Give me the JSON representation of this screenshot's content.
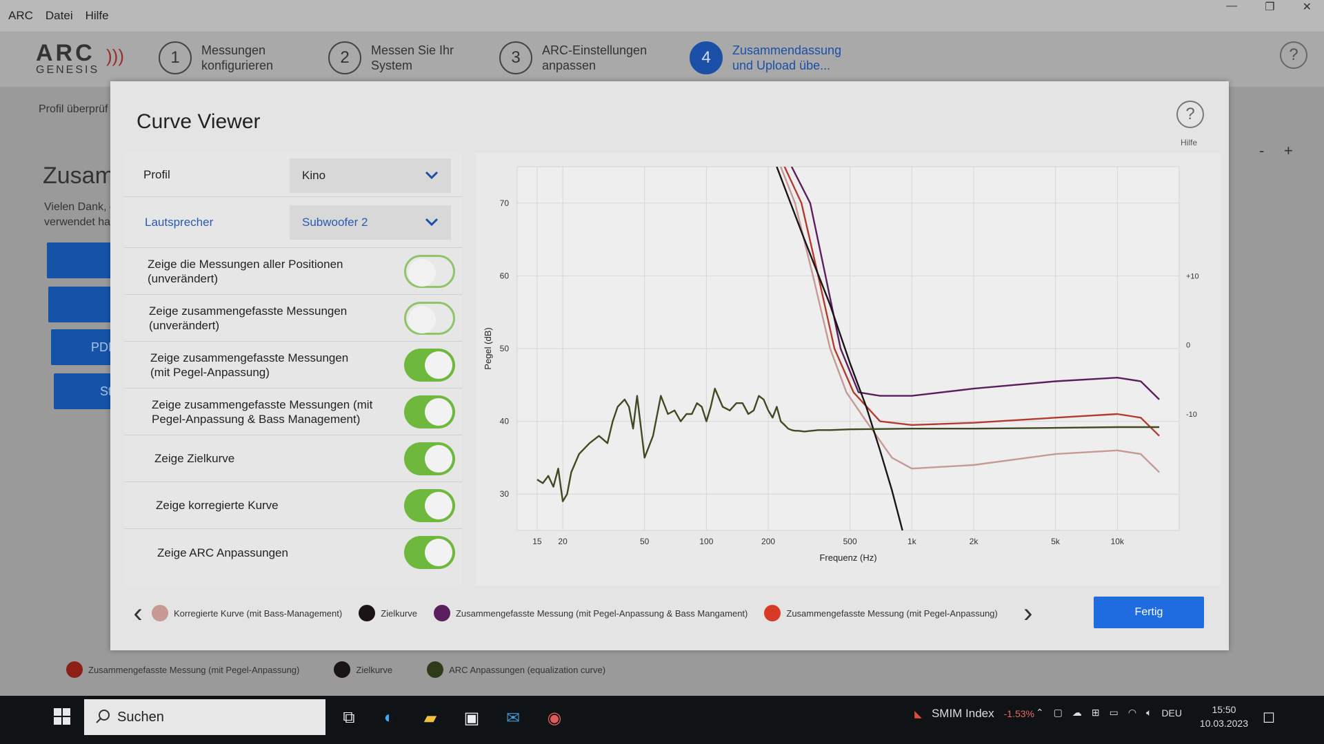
{
  "menubar": {
    "items": [
      "ARC",
      "Datei",
      "Hilfe"
    ]
  },
  "logo": {
    "arc": "ARC",
    "genesis": "GENESIS"
  },
  "steps": [
    {
      "num": "1",
      "label": "Messungen konfigurieren"
    },
    {
      "num": "2",
      "label": "Messen Sie Ihr System"
    },
    {
      "num": "3",
      "label": "ARC-Einstellungen anpassen"
    },
    {
      "num": "4",
      "label": "Zusammendassung und Upload übe..."
    }
  ],
  "background": {
    "profile_check": "Profil überprüf",
    "heading": "Zusam",
    "thanks_1": "Vielen Dank, c",
    "thanks_2": "verwendet ha",
    "pdf_button": "PDF",
    "start_button": "Sta",
    "zoom_minus": "-",
    "zoom_plus": "+"
  },
  "modal": {
    "title": "Curve Viewer",
    "help_label": "Hilfe",
    "profile_label": "Profil",
    "profile_value": "Kino",
    "speaker_label": "Lautsprecher",
    "speaker_value": "Subwoofer 2",
    "toggles": [
      {
        "label": "Zeige die Messungen aller Positionen (unverändert)",
        "on": false
      },
      {
        "label": "Zeige zusammengefasste Messungen (unverändert)",
        "on": false
      },
      {
        "label": "Zeige zusammengefasste Messungen (mit Pegel-Anpassung)",
        "on": true
      },
      {
        "label": "Zeige zusammengefasste Messungen (mit Pegel-Anpassung & Bass Management)",
        "on": true
      },
      {
        "label": "Zeige Zielkurve",
        "on": true
      },
      {
        "label": "Zeige korregierte Kurve",
        "on": true
      },
      {
        "label": "Zeige ARC Anpassungen",
        "on": true
      }
    ],
    "legend": [
      {
        "label": "Korregierte Kurve (mit Bass-Management)",
        "color": "#c49a92"
      },
      {
        "label": "Zielkurve",
        "color": "#1a1416"
      },
      {
        "label": "Zusammengefasste Messung (mit Pegel-Anpassung & Bass Mangament)",
        "color": "#5a1f5c"
      },
      {
        "label": "Zusammengefasste Messung (mit Pegel-Anpassung)",
        "color": "#d83a25"
      }
    ],
    "done_button": "Fertig"
  },
  "chart_data": {
    "type": "line",
    "xlabel": "Frequenz (Hz)",
    "ylabel": "Pegel (dB)",
    "x_scale": "log",
    "xlim": [
      12,
      20000
    ],
    "ylim": [
      25,
      75
    ],
    "x_ticks": [
      {
        "value": 15,
        "label": "15"
      },
      {
        "value": 20,
        "label": "20"
      },
      {
        "value": 50,
        "label": "50"
      },
      {
        "value": 100,
        "label": "100"
      },
      {
        "value": 200,
        "label": "200"
      },
      {
        "value": 500,
        "label": "500"
      },
      {
        "value": 1000,
        "label": "1k"
      },
      {
        "value": 2000,
        "label": "2k"
      },
      {
        "value": 5000,
        "label": "5k"
      },
      {
        "value": 10000,
        "label": "10k"
      }
    ],
    "y_ticks": [
      30,
      40,
      50,
      60,
      70
    ],
    "y2_ticks": [
      {
        "value": 60,
        "label": "+10"
      },
      {
        "value": 50.5,
        "label": "0"
      },
      {
        "value": 41,
        "label": "-10"
      }
    ],
    "grid": true,
    "series": [
      {
        "color": "#5a1f5c",
        "x": [
          260,
          320,
          380,
          450,
          550,
          700,
          1000,
          2000,
          5000,
          10000,
          13000,
          16000
        ],
        "y": [
          75,
          70,
          60,
          50,
          44,
          43.5,
          43.5,
          44.5,
          45.5,
          46,
          45.5,
          43
        ]
      },
      {
        "color": "#b33b2e",
        "x": [
          240,
          290,
          350,
          420,
          520,
          700,
          1000,
          2000,
          5000,
          10000,
          13000,
          16000
        ],
        "y": [
          75,
          70,
          60,
          50,
          44,
          40,
          39.5,
          39.8,
          40.5,
          41,
          40.5,
          38
        ]
      },
      {
        "color": "#c49a92",
        "x": [
          230,
          270,
          330,
          400,
          480,
          600,
          800,
          1000,
          2000,
          5000,
          10000,
          13000,
          16000
        ],
        "y": [
          75,
          70,
          60,
          50,
          44,
          40,
          35,
          33.5,
          34,
          35.5,
          36,
          35.5,
          33
        ]
      },
      {
        "color": "#1a1416",
        "x": [
          220,
          300,
          400,
          500,
          600,
          700,
          800,
          900
        ],
        "y": [
          75,
          65,
          56,
          48,
          42,
          36,
          30.5,
          25
        ]
      },
      {
        "color": "#3f4a23",
        "x": [
          15,
          16,
          17,
          18,
          19,
          20,
          21,
          22,
          24,
          27,
          30,
          33,
          35,
          37,
          40,
          42,
          44,
          46,
          50,
          55,
          60,
          65,
          70,
          75,
          80,
          85,
          90,
          95,
          100,
          105,
          110,
          120,
          130,
          140,
          150,
          160,
          170,
          180,
          190,
          200,
          210,
          220,
          230,
          240,
          250,
          260,
          270,
          280,
          300,
          350,
          400,
          500,
          1000,
          2000,
          5000,
          10000,
          16000
        ],
        "y": [
          32,
          31.5,
          32.5,
          31,
          33.5,
          29,
          30,
          33,
          35.5,
          37,
          38,
          37,
          40,
          42,
          43,
          42,
          39,
          43.5,
          35,
          38,
          43.5,
          41,
          41.5,
          40,
          41,
          41,
          42.5,
          42,
          40,
          42,
          44.5,
          42,
          41.5,
          42.5,
          42.5,
          41,
          41.5,
          43.5,
          43,
          41.5,
          40.5,
          42,
          40,
          39.5,
          39,
          38.8,
          38.7,
          38.7,
          38.6,
          38.8,
          38.8,
          38.9,
          39,
          39,
          39.1,
          39.2,
          39.2
        ]
      }
    ]
  },
  "bg_legend": [
    {
      "label": "Zusammengefasste Messung (mit Pegel-Anpassung)",
      "color": "#8c1f18"
    },
    {
      "label": "Zielkurve",
      "color": "#1a1416"
    },
    {
      "label": "ARC Anpassungen (equalization curve)",
      "color": "#2f3a1b"
    }
  ],
  "taskbar": {
    "search_placeholder": "Suchen",
    "stock_name": "SMIM Index",
    "stock_change": "-1.53%",
    "lang": "DEU",
    "time": "15:50",
    "date": "10.03.2023"
  }
}
